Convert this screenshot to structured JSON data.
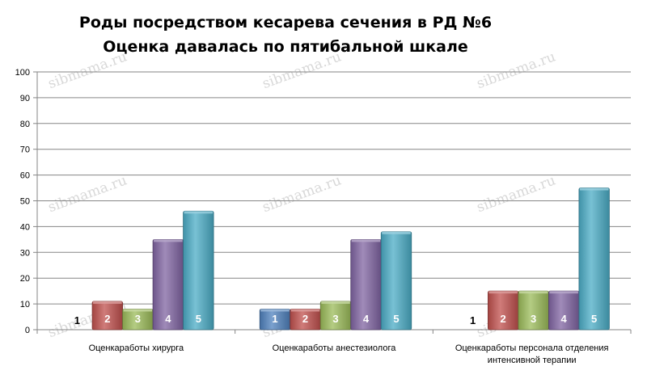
{
  "chart_data": {
    "type": "bar",
    "title": [
      "Роды посредством кесарева сечения в РД №6",
      "Оценка давалась по пятибальной шкале"
    ],
    "categories": [
      [
        "Оценкаработы хирурга"
      ],
      [
        "Оценкаработы анестезиолога"
      ],
      [
        "Оценкаработы персонала отделения",
        "интенсивной терапии"
      ]
    ],
    "series": [
      {
        "name": "1",
        "color": "#4f81bd",
        "values": [
          0,
          8,
          0
        ]
      },
      {
        "name": "2",
        "color": "#c0504d",
        "values": [
          11,
          8,
          15
        ]
      },
      {
        "name": "3",
        "color": "#9bbb59",
        "values": [
          8,
          11,
          15
        ]
      },
      {
        "name": "4",
        "color": "#8064a2",
        "values": [
          35,
          35,
          15
        ]
      },
      {
        "name": "5",
        "color": "#4bacc6",
        "values": [
          46,
          38,
          55
        ]
      }
    ],
    "ylim": [
      0,
      100
    ],
    "yticks": [
      0,
      10,
      20,
      30,
      40,
      50,
      60,
      70,
      80,
      90,
      100
    ],
    "grid": true,
    "legend": "none",
    "watermark": "sibmama.ru"
  }
}
